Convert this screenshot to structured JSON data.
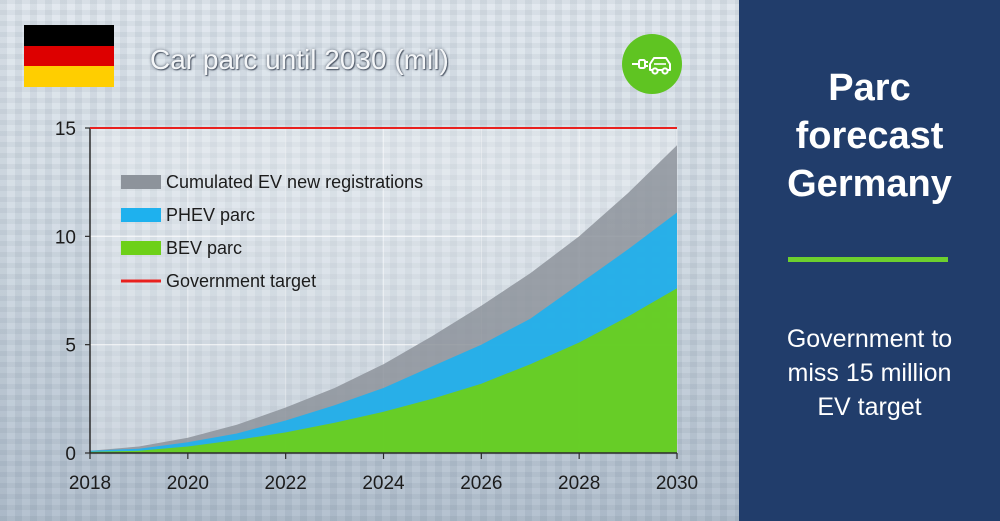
{
  "colors": {
    "cumulated": "#8d939b",
    "phev": "#1eb1ee",
    "bev": "#6dd018",
    "target_line": "#e8201e",
    "panel_bg": "#213d6b",
    "panel_accent": "#6dd02e",
    "flag": [
      "#000000",
      "#dd0000",
      "#ffce00"
    ]
  },
  "icons": {
    "flag": "germany-flag-icon",
    "ev": "ev-charging-car-icon"
  },
  "panel": {
    "title_lines": [
      "Parc",
      "forecast",
      "Germany"
    ],
    "subtitle_lines": [
      "Government to",
      "miss 15 million",
      "EV target"
    ]
  },
  "chart_data": {
    "type": "area",
    "title": "Car parc until 2030 (mil)",
    "x": [
      2018,
      2019,
      2020,
      2021,
      2022,
      2023,
      2024,
      2025,
      2026,
      2027,
      2028,
      2029,
      2030
    ],
    "series": [
      {
        "name": "Cumulated EV new registrations",
        "values": [
          0.1,
          0.3,
          0.7,
          1.3,
          2.1,
          3.0,
          4.1,
          5.4,
          6.8,
          8.3,
          10.0,
          12.0,
          14.2
        ]
      },
      {
        "name": "PHEV parc",
        "values": [
          0.1,
          0.2,
          0.5,
          0.9,
          1.5,
          2.2,
          3.0,
          4.0,
          5.0,
          6.2,
          7.8,
          9.4,
          11.1
        ]
      },
      {
        "name": "BEV parc",
        "values": [
          0.05,
          0.1,
          0.3,
          0.6,
          0.95,
          1.4,
          1.9,
          2.5,
          3.2,
          4.1,
          5.1,
          6.3,
          7.6
        ]
      },
      {
        "name": "Government target",
        "type": "line",
        "values": [
          15,
          15,
          15,
          15,
          15,
          15,
          15,
          15,
          15,
          15,
          15,
          15,
          15
        ]
      }
    ],
    "xticks": [
      "2018",
      "2020",
      "2022",
      "2024",
      "2026",
      "2028",
      "2030"
    ],
    "yticks": [
      "0",
      "5",
      "10",
      "15"
    ],
    "xlim": [
      2018,
      2030
    ],
    "ylim": [
      0,
      15
    ],
    "grid": true,
    "legend_position": "top-left"
  }
}
